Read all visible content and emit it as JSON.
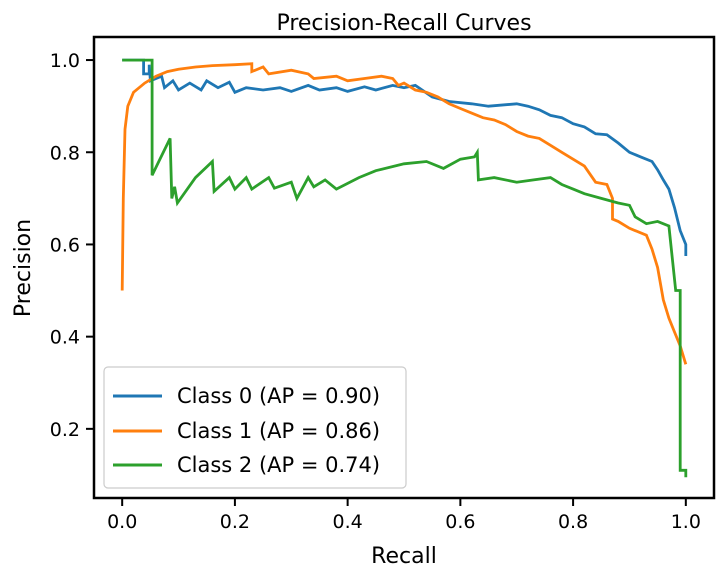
{
  "chart_data": {
    "type": "line",
    "title": "Precision-Recall Curves",
    "xlabel": "Recall",
    "ylabel": "Precision",
    "xlim": [
      -0.05,
      1.05
    ],
    "ylim": [
      0.05,
      1.05
    ],
    "xticks": [
      0.0,
      0.2,
      0.4,
      0.6,
      0.8,
      1.0
    ],
    "xtick_labels": [
      "0.0",
      "0.2",
      "0.4",
      "0.6",
      "0.8",
      "1.0"
    ],
    "yticks": [
      0.2,
      0.4,
      0.6,
      0.8,
      1.0
    ],
    "ytick_labels": [
      "0.2",
      "0.4",
      "0.6",
      "0.8",
      "1.0"
    ],
    "grid": false,
    "legend_position": "lower-left",
    "series": [
      {
        "name": "Class 0 (AP = 0.90)",
        "color": "#1f77b4",
        "points": [
          [
            0.0,
            1.0
          ],
          [
            0.038,
            1.0
          ],
          [
            0.038,
            0.97
          ],
          [
            0.048,
            0.97
          ],
          [
            0.048,
            0.99
          ],
          [
            0.05,
            0.955
          ],
          [
            0.07,
            0.965
          ],
          [
            0.075,
            0.94
          ],
          [
            0.09,
            0.955
          ],
          [
            0.1,
            0.935
          ],
          [
            0.12,
            0.95
          ],
          [
            0.14,
            0.935
          ],
          [
            0.15,
            0.955
          ],
          [
            0.17,
            0.94
          ],
          [
            0.19,
            0.952
          ],
          [
            0.2,
            0.93
          ],
          [
            0.22,
            0.94
          ],
          [
            0.25,
            0.935
          ],
          [
            0.28,
            0.94
          ],
          [
            0.3,
            0.932
          ],
          [
            0.33,
            0.945
          ],
          [
            0.35,
            0.935
          ],
          [
            0.38,
            0.94
          ],
          [
            0.4,
            0.932
          ],
          [
            0.43,
            0.942
          ],
          [
            0.45,
            0.935
          ],
          [
            0.48,
            0.945
          ],
          [
            0.5,
            0.94
          ],
          [
            0.52,
            0.945
          ],
          [
            0.55,
            0.92
          ],
          [
            0.58,
            0.91
          ],
          [
            0.62,
            0.905
          ],
          [
            0.65,
            0.9
          ],
          [
            0.7,
            0.905
          ],
          [
            0.72,
            0.9
          ],
          [
            0.74,
            0.892
          ],
          [
            0.76,
            0.88
          ],
          [
            0.78,
            0.875
          ],
          [
            0.8,
            0.862
          ],
          [
            0.82,
            0.855
          ],
          [
            0.84,
            0.84
          ],
          [
            0.86,
            0.838
          ],
          [
            0.88,
            0.82
          ],
          [
            0.9,
            0.8
          ],
          [
            0.92,
            0.79
          ],
          [
            0.94,
            0.78
          ],
          [
            0.95,
            0.762
          ],
          [
            0.96,
            0.74
          ],
          [
            0.97,
            0.72
          ],
          [
            0.98,
            0.68
          ],
          [
            0.99,
            0.63
          ],
          [
            1.0,
            0.6
          ],
          [
            1.0,
            0.575
          ]
        ]
      },
      {
        "name": "Class 1 (AP = 0.86)",
        "color": "#ff7f0e",
        "points": [
          [
            0.0,
            0.5
          ],
          [
            0.002,
            0.7
          ],
          [
            0.005,
            0.85
          ],
          [
            0.01,
            0.9
          ],
          [
            0.02,
            0.93
          ],
          [
            0.04,
            0.95
          ],
          [
            0.06,
            0.965
          ],
          [
            0.08,
            0.975
          ],
          [
            0.1,
            0.98
          ],
          [
            0.13,
            0.985
          ],
          [
            0.16,
            0.988
          ],
          [
            0.2,
            0.99
          ],
          [
            0.23,
            0.992
          ],
          [
            0.23,
            0.975
          ],
          [
            0.25,
            0.985
          ],
          [
            0.26,
            0.97
          ],
          [
            0.3,
            0.978
          ],
          [
            0.33,
            0.97
          ],
          [
            0.34,
            0.96
          ],
          [
            0.38,
            0.965
          ],
          [
            0.4,
            0.955
          ],
          [
            0.43,
            0.96
          ],
          [
            0.46,
            0.965
          ],
          [
            0.48,
            0.96
          ],
          [
            0.49,
            0.945
          ],
          [
            0.5,
            0.95
          ],
          [
            0.52,
            0.935
          ],
          [
            0.54,
            0.93
          ],
          [
            0.56,
            0.92
          ],
          [
            0.58,
            0.905
          ],
          [
            0.6,
            0.895
          ],
          [
            0.62,
            0.885
          ],
          [
            0.64,
            0.875
          ],
          [
            0.66,
            0.87
          ],
          [
            0.68,
            0.86
          ],
          [
            0.7,
            0.845
          ],
          [
            0.72,
            0.835
          ],
          [
            0.74,
            0.83
          ],
          [
            0.76,
            0.815
          ],
          [
            0.78,
            0.8
          ],
          [
            0.8,
            0.785
          ],
          [
            0.82,
            0.77
          ],
          [
            0.84,
            0.735
          ],
          [
            0.86,
            0.73
          ],
          [
            0.87,
            0.7
          ],
          [
            0.87,
            0.655
          ],
          [
            0.88,
            0.65
          ],
          [
            0.9,
            0.635
          ],
          [
            0.93,
            0.62
          ],
          [
            0.94,
            0.59
          ],
          [
            0.95,
            0.55
          ],
          [
            0.96,
            0.48
          ],
          [
            0.97,
            0.44
          ],
          [
            0.98,
            0.41
          ],
          [
            0.99,
            0.38
          ],
          [
            1.0,
            0.34
          ]
        ]
      },
      {
        "name": "Class 2 (AP = 0.74)",
        "color": "#2ca02c",
        "points": [
          [
            0.0,
            1.0
          ],
          [
            0.053,
            1.0
          ],
          [
            0.053,
            0.75
          ],
          [
            0.065,
            0.78
          ],
          [
            0.085,
            0.83
          ],
          [
            0.088,
            0.7
          ],
          [
            0.093,
            0.725
          ],
          [
            0.098,
            0.69
          ],
          [
            0.13,
            0.745
          ],
          [
            0.16,
            0.78
          ],
          [
            0.163,
            0.715
          ],
          [
            0.19,
            0.745
          ],
          [
            0.2,
            0.72
          ],
          [
            0.22,
            0.745
          ],
          [
            0.23,
            0.72
          ],
          [
            0.26,
            0.745
          ],
          [
            0.27,
            0.722
          ],
          [
            0.3,
            0.735
          ],
          [
            0.31,
            0.7
          ],
          [
            0.33,
            0.745
          ],
          [
            0.34,
            0.725
          ],
          [
            0.36,
            0.74
          ],
          [
            0.38,
            0.72
          ],
          [
            0.42,
            0.745
          ],
          [
            0.45,
            0.76
          ],
          [
            0.5,
            0.775
          ],
          [
            0.54,
            0.78
          ],
          [
            0.57,
            0.765
          ],
          [
            0.6,
            0.785
          ],
          [
            0.625,
            0.79
          ],
          [
            0.63,
            0.8
          ],
          [
            0.632,
            0.74
          ],
          [
            0.66,
            0.745
          ],
          [
            0.7,
            0.735
          ],
          [
            0.73,
            0.74
          ],
          [
            0.76,
            0.745
          ],
          [
            0.78,
            0.73
          ],
          [
            0.8,
            0.72
          ],
          [
            0.82,
            0.71
          ],
          [
            0.85,
            0.7
          ],
          [
            0.88,
            0.69
          ],
          [
            0.9,
            0.685
          ],
          [
            0.91,
            0.66
          ],
          [
            0.93,
            0.645
          ],
          [
            0.95,
            0.65
          ],
          [
            0.97,
            0.64
          ],
          [
            0.982,
            0.5
          ],
          [
            0.99,
            0.5
          ],
          [
            0.99,
            0.11
          ],
          [
            1.0,
            0.11
          ],
          [
            1.0,
            0.095
          ]
        ]
      }
    ]
  }
}
